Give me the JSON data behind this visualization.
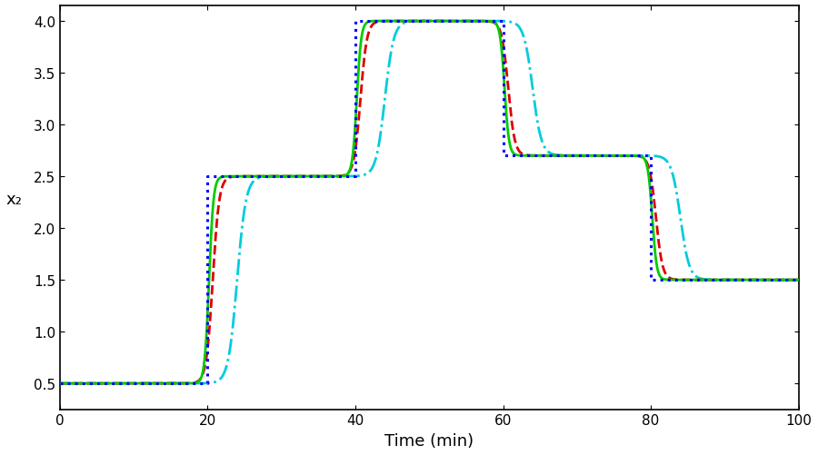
{
  "title": "",
  "xlabel": "Time (min)",
  "ylabel": "x₂",
  "xlim": [
    0,
    100
  ],
  "ylim": [
    0.25,
    4.15
  ],
  "yticks": [
    0.5,
    1.0,
    1.5,
    2.0,
    2.5,
    3.0,
    3.5,
    4.0
  ],
  "xticks": [
    0,
    20,
    40,
    60,
    80,
    100
  ],
  "setpoint_color": "#0000FF",
  "green_color": "#00CC00",
  "red_color": "#DD0000",
  "cyan_color": "#00CCDD",
  "step_times": [
    0,
    20,
    40,
    60,
    80,
    100
  ],
  "step_values": [
    0.5,
    2.5,
    4.0,
    2.7,
    1.5
  ],
  "background_color": "#ffffff"
}
